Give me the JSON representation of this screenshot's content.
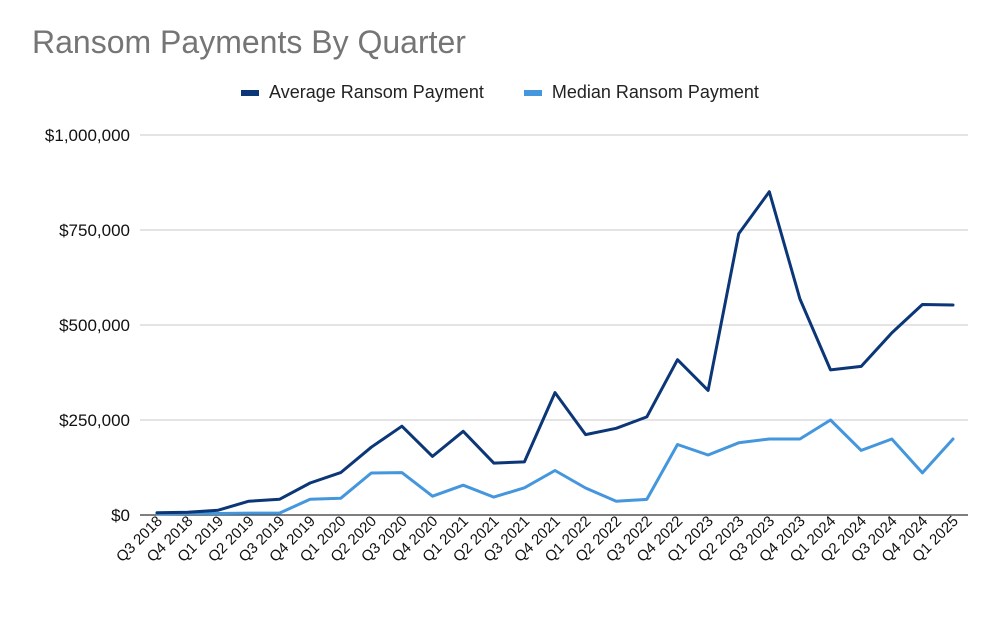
{
  "chart_data": {
    "type": "line",
    "title": "Ransom Payments By Quarter",
    "xlabel": "",
    "ylabel": "",
    "ylim": [
      0,
      1000000
    ],
    "y_ticks": [
      "$0",
      "$250,000",
      "$500,000",
      "$750,000",
      "$1,000,000"
    ],
    "y_tick_values": [
      0,
      250000,
      500000,
      750000,
      1000000
    ],
    "grid": true,
    "legend_position": "top",
    "categories": [
      "Q3 2018",
      "Q4 2018",
      "Q1 2019",
      "Q2 2019",
      "Q3 2019",
      "Q4 2019",
      "Q1 2020",
      "Q2 2020",
      "Q3 2020",
      "Q4 2020",
      "Q1 2021",
      "Q2 2021",
      "Q3 2021",
      "Q4 2021",
      "Q1 2022",
      "Q2 2022",
      "Q3 2022",
      "Q4 2022",
      "Q1 2023",
      "Q2 2023",
      "Q3 2023",
      "Q4 2023",
      "Q1 2024",
      "Q2 2024",
      "Q3 2024",
      "Q4 2024",
      "Q1 2025"
    ],
    "series": [
      {
        "name": "Average Ransom Payment",
        "color": "#0b3677",
        "values": [
          6000,
          7000,
          12600,
          36300,
          41200,
          84100,
          111600,
          178300,
          233800,
          154100,
          220300,
          136600,
          139700,
          322200,
          211500,
          228100,
          258100,
          408600,
          327900,
          740100,
          850700,
          568700,
          381900,
          391000,
          479200,
          553900,
          552600
        ]
      },
      {
        "name": "Median Ransom Payment",
        "color": "#4496dd",
        "values": [
          3000,
          4000,
          4000,
          5000,
          5000,
          41200,
          44000,
          110500,
          111600,
          49500,
          78400,
          47000,
          71700,
          117000,
          71000,
          36400,
          41000,
          185600,
          158000,
          190000,
          200000,
          200000,
          250000,
          170000,
          200000,
          110900,
          200000
        ]
      }
    ]
  }
}
